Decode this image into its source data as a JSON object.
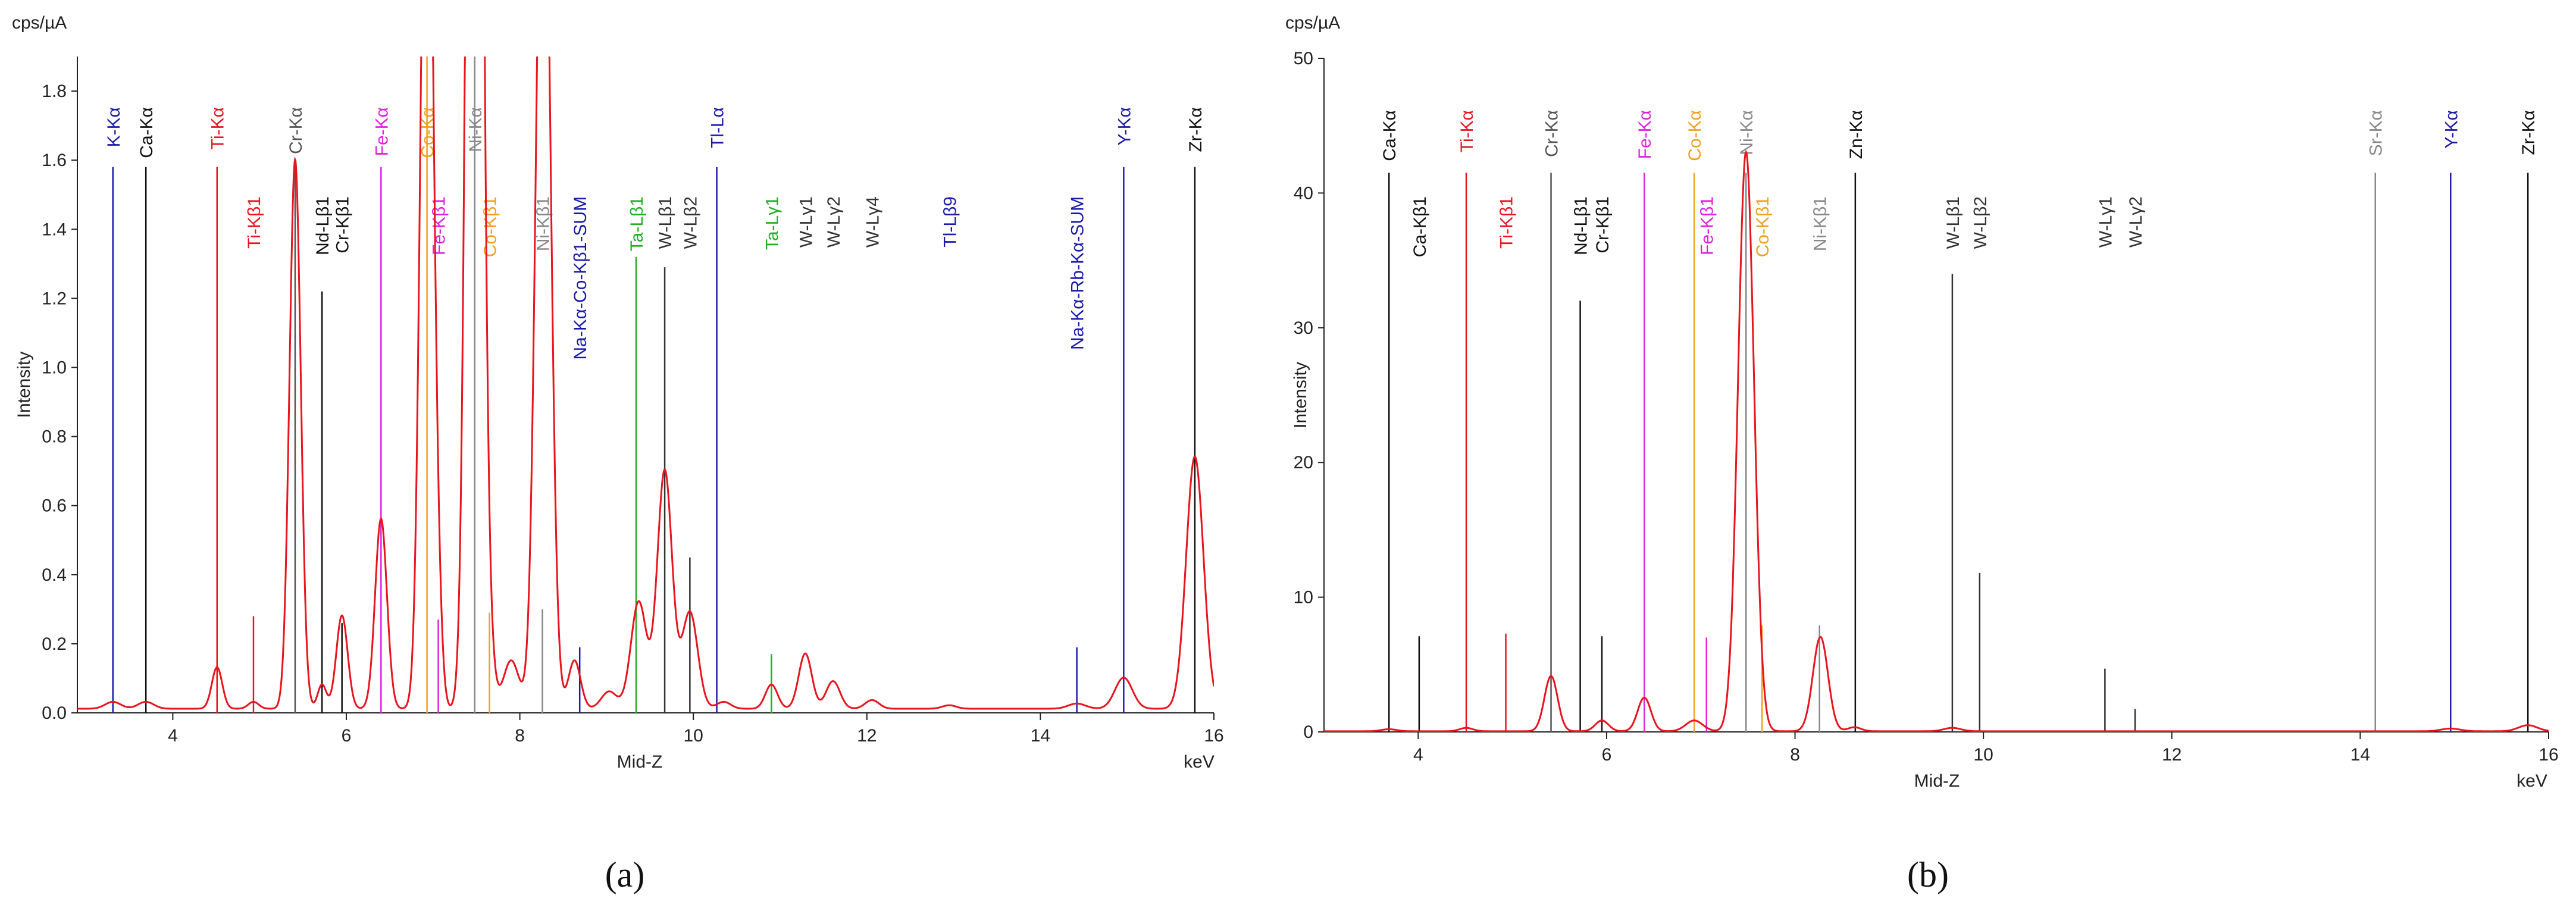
{
  "chart_data": [
    {
      "panel": "a",
      "type": "line",
      "unit_label": "cps/µA",
      "xlabel": "Mid-Z",
      "xunit": "keV",
      "ylabel": "Intensity",
      "xlim": [
        2.9,
        16.0
      ],
      "ylim": [
        0,
        1.9
      ],
      "xticks": [
        4,
        6,
        8,
        10,
        12,
        14,
        16
      ],
      "yticks": [
        0.0,
        0.2,
        0.4,
        0.6,
        0.8,
        1.0,
        1.2,
        1.4,
        1.6,
        1.8
      ],
      "ytick_labels": [
        "0.0",
        "0.2",
        "0.4",
        "0.6",
        "0.8",
        "1.0",
        "1.2",
        "1.4",
        "1.6",
        "1.8"
      ],
      "series": [
        {
          "name": "spectrum",
          "color": "#e8141e",
          "baseline": 0.012,
          "peaks": [
            {
              "e": 3.31,
              "h": 0.02,
              "w": 0.09
            },
            {
              "e": 3.69,
              "h": 0.02,
              "w": 0.09
            },
            {
              "e": 4.51,
              "h": 0.12,
              "w": 0.06
            },
            {
              "e": 4.93,
              "h": 0.02,
              "w": 0.06
            },
            {
              "e": 5.41,
              "h": 1.59,
              "w": 0.065
            },
            {
              "e": 5.72,
              "h": 0.07,
              "w": 0.05
            },
            {
              "e": 5.95,
              "h": 0.27,
              "w": 0.065
            },
            {
              "e": 6.4,
              "h": 0.55,
              "w": 0.068
            },
            {
              "e": 6.93,
              "h": 3.0,
              "w": 0.07
            },
            {
              "e": 7.06,
              "h": 0.15,
              "w": 0.05
            },
            {
              "e": 7.48,
              "h": 6.0,
              "w": 0.075
            },
            {
              "e": 7.65,
              "h": 0.12,
              "w": 0.06
            },
            {
              "e": 7.9,
              "h": 0.14,
              "w": 0.09
            },
            {
              "e": 8.27,
              "h": 2.8,
              "w": 0.08
            },
            {
              "e": 8.63,
              "h": 0.14,
              "w": 0.07
            },
            {
              "e": 9.03,
              "h": 0.05,
              "w": 0.09
            },
            {
              "e": 9.37,
              "h": 0.31,
              "w": 0.09
            },
            {
              "e": 9.67,
              "h": 0.69,
              "w": 0.085
            },
            {
              "e": 9.96,
              "h": 0.28,
              "w": 0.09
            },
            {
              "e": 10.35,
              "h": 0.02,
              "w": 0.08
            },
            {
              "e": 10.9,
              "h": 0.07,
              "w": 0.07
            },
            {
              "e": 11.29,
              "h": 0.16,
              "w": 0.075
            },
            {
              "e": 11.61,
              "h": 0.08,
              "w": 0.08
            },
            {
              "e": 12.06,
              "h": 0.025,
              "w": 0.08
            },
            {
              "e": 12.95,
              "h": 0.01,
              "w": 0.08
            },
            {
              "e": 14.42,
              "h": 0.015,
              "w": 0.1
            },
            {
              "e": 14.96,
              "h": 0.09,
              "w": 0.1
            },
            {
              "e": 15.78,
              "h": 0.73,
              "w": 0.1
            }
          ]
        }
      ],
      "markers": [
        {
          "label": "K-Kα",
          "e": 3.31,
          "h": 1.58,
          "color": "#1a1aaa",
          "row": 0
        },
        {
          "label": "Ca-Kα",
          "e": 3.69,
          "h": 1.58,
          "color": "#111111",
          "row": 0
        },
        {
          "label": "Ti-Kα",
          "e": 4.51,
          "h": 1.58,
          "color": "#e8141e",
          "row": 0
        },
        {
          "label": "Ti-Kβ1",
          "e": 4.93,
          "h": 0.28,
          "color": "#e8141e",
          "row": 1
        },
        {
          "label": "Cr-Kα",
          "e": 5.41,
          "h": 1.58,
          "color": "#555555",
          "row": 0
        },
        {
          "label": "Nd-Lβ1",
          "e": 5.72,
          "h": 1.22,
          "color": "#111111",
          "row": 1
        },
        {
          "label": "Cr-Kβ1",
          "e": 5.95,
          "h": 0.26,
          "color": "#111111",
          "row": 1
        },
        {
          "label": "Fe-Kα",
          "e": 6.4,
          "h": 1.58,
          "color": "#e020e0",
          "row": 0
        },
        {
          "label": "Co-Kα",
          "e": 6.93,
          "h": 1.9,
          "color": "#f0a020",
          "row": 0
        },
        {
          "label": "Fe-Kβ1",
          "e": 7.06,
          "h": 0.27,
          "color": "#e020e0",
          "row": 1
        },
        {
          "label": "Ni-Kα",
          "e": 7.48,
          "h": 1.9,
          "color": "#888888",
          "row": 0
        },
        {
          "label": "Co-Kβ1",
          "e": 7.65,
          "h": 0.29,
          "color": "#f0a020",
          "row": 1
        },
        {
          "label": "Ni-Kβ1",
          "e": 8.26,
          "h": 0.3,
          "color": "#888888",
          "row": 1
        },
        {
          "label": "Na-Kα-Co-Kβ1-SUM",
          "e": 8.69,
          "h": 0.19,
          "color": "#1a1aaa",
          "row": 1
        },
        {
          "label": "Ta-Lβ1",
          "e": 9.34,
          "h": 1.32,
          "color": "#20b020",
          "row": 1
        },
        {
          "label": "W-Lβ1",
          "e": 9.67,
          "h": 1.29,
          "color": "#333333",
          "row": 1
        },
        {
          "label": "W-Lβ2",
          "e": 9.96,
          "h": 0.45,
          "color": "#333333",
          "row": 1
        },
        {
          "label": "Tl-Lα",
          "e": 10.27,
          "h": 1.58,
          "color": "#1a1aaa",
          "row": 0
        },
        {
          "label": "Ta-Lγ1",
          "e": 10.9,
          "h": 0.17,
          "color": "#20b020",
          "row": 1
        },
        {
          "label": "W-Lγ1",
          "e": 11.29,
          "h": 0.0,
          "color": "#333333",
          "row": 1
        },
        {
          "label": "W-Lγ2",
          "e": 11.61,
          "h": 0.0,
          "color": "#333333",
          "row": 1
        },
        {
          "label": "W-Lγ4",
          "e": 12.06,
          "h": 0.0,
          "color": "#333333",
          "row": 1
        },
        {
          "label": "Tl-Lβ9",
          "e": 12.95,
          "h": 0.0,
          "color": "#1a1aaa",
          "row": 1
        },
        {
          "label": "Na-Kα-Rb-Kα-SUM",
          "e": 14.42,
          "h": 0.19,
          "color": "#1a1aaa",
          "row": 1
        },
        {
          "label": "Y-Kα",
          "e": 14.96,
          "h": 1.58,
          "color": "#1a1aaa",
          "row": 0
        },
        {
          "label": "Zr-Kα",
          "e": 15.78,
          "h": 1.58,
          "color": "#111111",
          "row": 0
        }
      ],
      "caption": "(a)"
    },
    {
      "panel": "b",
      "type": "line",
      "unit_label": "cps/µA",
      "xlabel": "Mid-Z",
      "xunit": "keV",
      "ylabel": "Intensity",
      "xlim": [
        3.0,
        16.0
      ],
      "ylim": [
        0,
        50
      ],
      "xticks": [
        4,
        6,
        8,
        10,
        12,
        14,
        16
      ],
      "yticks": [
        0,
        10,
        20,
        30,
        40,
        50
      ],
      "ytick_labels": [
        "0",
        "10",
        "20",
        "30",
        "40",
        "50"
      ],
      "series": [
        {
          "name": "spectrum",
          "color": "#e8141e",
          "baseline": 0.05,
          "peaks": [
            {
              "e": 3.69,
              "h": 0.15,
              "w": 0.08
            },
            {
              "e": 4.51,
              "h": 0.25,
              "w": 0.07
            },
            {
              "e": 5.41,
              "h": 4.1,
              "w": 0.07
            },
            {
              "e": 5.95,
              "h": 0.8,
              "w": 0.07
            },
            {
              "e": 6.4,
              "h": 2.5,
              "w": 0.07
            },
            {
              "e": 6.93,
              "h": 0.8,
              "w": 0.09
            },
            {
              "e": 7.48,
              "h": 43.0,
              "w": 0.085
            },
            {
              "e": 8.27,
              "h": 7.0,
              "w": 0.08
            },
            {
              "e": 8.63,
              "h": 0.3,
              "w": 0.07
            },
            {
              "e": 9.67,
              "h": 0.25,
              "w": 0.09
            },
            {
              "e": 14.96,
              "h": 0.2,
              "w": 0.1
            },
            {
              "e": 15.78,
              "h": 0.45,
              "w": 0.1
            }
          ]
        }
      ],
      "markers": [
        {
          "label": "Ca-Kα",
          "e": 3.69,
          "h": 41.5,
          "color": "#111111",
          "row": 0
        },
        {
          "label": "Ca-Kβ1",
          "e": 4.01,
          "h": 7.1,
          "color": "#111111",
          "row": 1
        },
        {
          "label": "Ti-Kα",
          "e": 4.51,
          "h": 41.5,
          "color": "#e8141e",
          "row": 0
        },
        {
          "label": "Ti-Kβ1",
          "e": 4.93,
          "h": 7.3,
          "color": "#e8141e",
          "row": 1
        },
        {
          "label": "Cr-Kα",
          "e": 5.41,
          "h": 41.5,
          "color": "#555555",
          "row": 0
        },
        {
          "label": "Nd-Lβ1",
          "e": 5.72,
          "h": 32.0,
          "color": "#111111",
          "row": 1
        },
        {
          "label": "Cr-Kβ1",
          "e": 5.95,
          "h": 7.1,
          "color": "#111111",
          "row": 1
        },
        {
          "label": "Fe-Kα",
          "e": 6.4,
          "h": 41.5,
          "color": "#e020e0",
          "row": 0
        },
        {
          "label": "Co-Kα",
          "e": 6.93,
          "h": 41.5,
          "color": "#f0a020",
          "row": 0
        },
        {
          "label": "Fe-Kβ1",
          "e": 7.06,
          "h": 7.0,
          "color": "#e020e0",
          "row": 1
        },
        {
          "label": "Ni-Kα",
          "e": 7.48,
          "h": 41.5,
          "color": "#888888",
          "row": 0
        },
        {
          "label": "Co-Kβ1",
          "e": 7.65,
          "h": 7.9,
          "color": "#f0a020",
          "row": 1
        },
        {
          "label": "Ni-Kβ1",
          "e": 8.26,
          "h": 7.9,
          "color": "#888888",
          "row": 1
        },
        {
          "label": "Zn-Kα",
          "e": 8.64,
          "h": 41.5,
          "color": "#111111",
          "row": 0
        },
        {
          "label": "W-Lβ1",
          "e": 9.67,
          "h": 34.0,
          "color": "#333333",
          "row": 1
        },
        {
          "label": "W-Lβ2",
          "e": 9.96,
          "h": 11.8,
          "color": "#333333",
          "row": 1
        },
        {
          "label": "W-Lγ1",
          "e": 11.29,
          "h": 4.7,
          "color": "#333333",
          "row": 1
        },
        {
          "label": "W-Lγ2",
          "e": 11.61,
          "h": 1.7,
          "color": "#333333",
          "row": 1
        },
        {
          "label": "Sr-Kα",
          "e": 14.16,
          "h": 41.5,
          "color": "#888888",
          "row": 0
        },
        {
          "label": "Y-Kα",
          "e": 14.96,
          "h": 41.5,
          "color": "#1a1aaa",
          "row": 0
        },
        {
          "label": "Zr-Kα",
          "e": 15.78,
          "h": 41.5,
          "color": "#111111",
          "row": 0
        }
      ],
      "caption": "(b)"
    }
  ]
}
